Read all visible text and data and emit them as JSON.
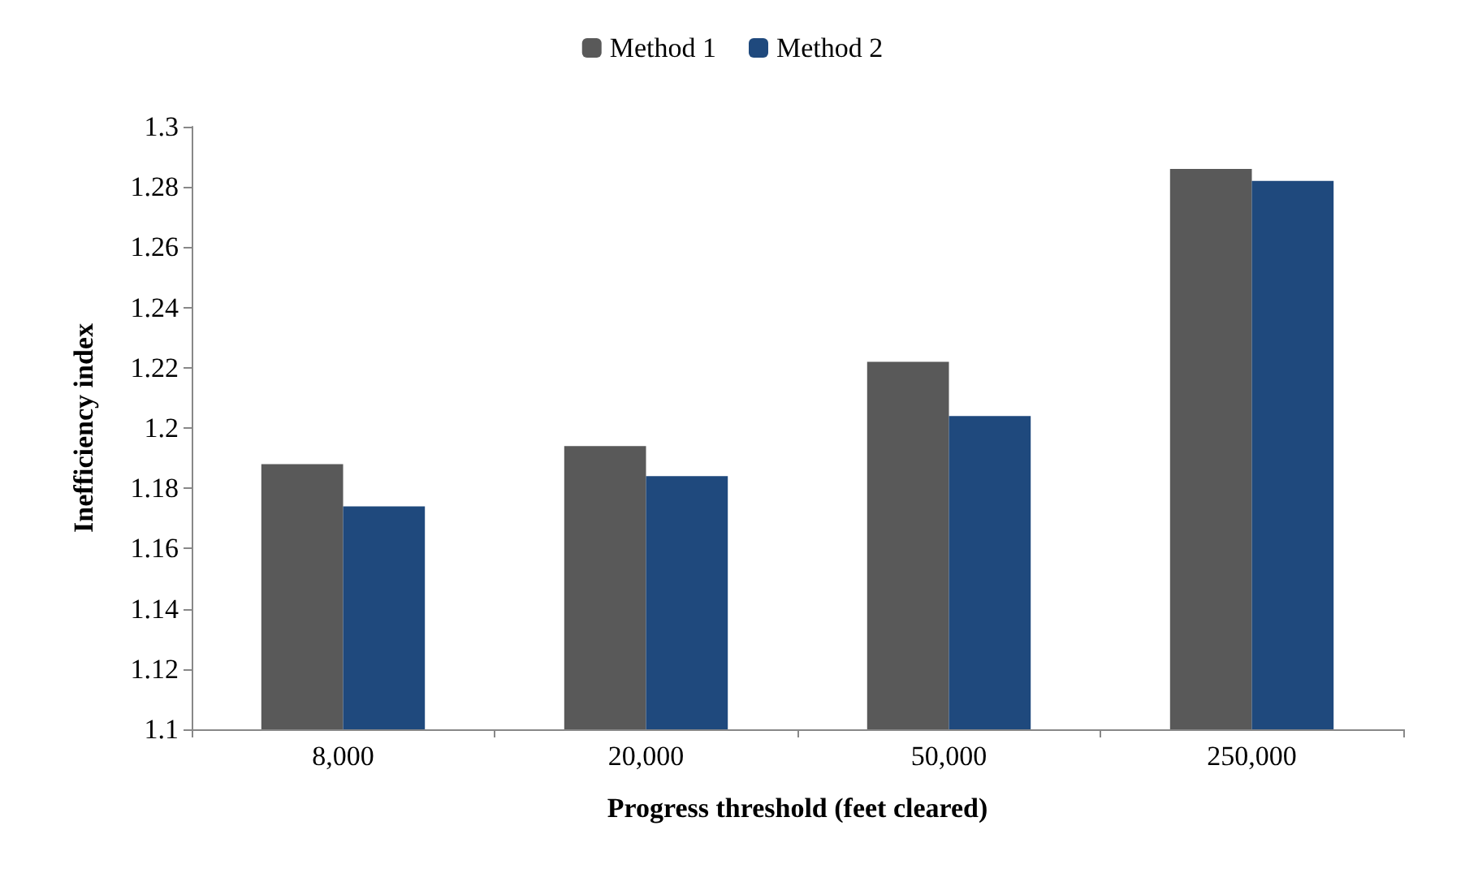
{
  "chart_data": {
    "type": "bar",
    "xlabel": "Progress threshold (feet cleared)",
    "ylabel": "Inefficiency index",
    "categories": [
      "8,000",
      "20,000",
      "50,000",
      "250,000"
    ],
    "series": [
      {
        "name": "Method 1",
        "color": "#595959",
        "values": [
          1.188,
          1.194,
          1.222,
          1.286
        ]
      },
      {
        "name": "Method 2",
        "color": "#1f497d",
        "values": [
          1.174,
          1.184,
          1.204,
          1.282
        ]
      }
    ],
    "ylim": [
      1.1,
      1.3
    ],
    "yticks": [
      1.1,
      1.12,
      1.14,
      1.16,
      1.18,
      1.2,
      1.22,
      1.24,
      1.26,
      1.28,
      1.3
    ],
    "grid": false,
    "legend": "top"
  }
}
